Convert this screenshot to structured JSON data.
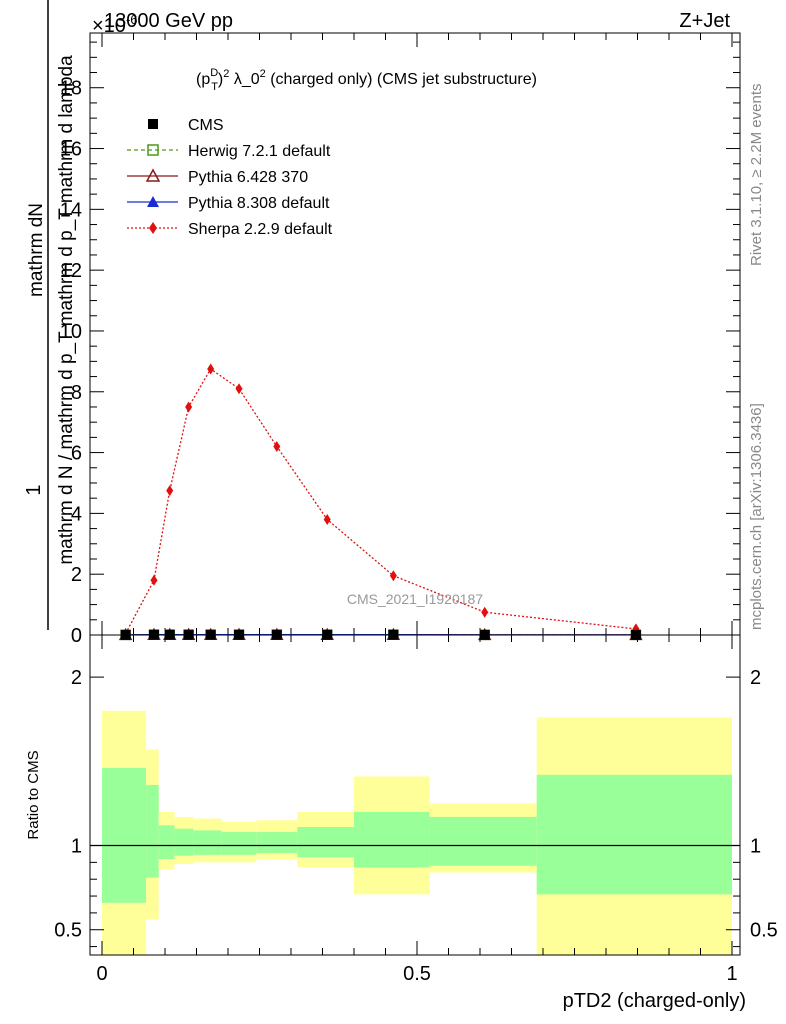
{
  "header": {
    "left_text": "13000 GeV pp",
    "right_text": "Z+Jet",
    "exponent_label": "×10",
    "exponent_power": "-6"
  },
  "side_labels": {
    "rivet": "Rivet 3.1.10, ≥ 2.2M events",
    "mcplots": "mcplots.cern.ch [arXiv:1306.3436]"
  },
  "watermark": "CMS_2021_I1920187",
  "chart_data": [
    {
      "type": "line",
      "title": "(pTD)2 λ_02 (charged only) (CMS jet substructure)",
      "title_parts": {
        "p": "(p",
        "sub": "T",
        "sup": "D",
        "close": ")",
        "sq": "2",
        "mid": " λ_0",
        "sq2": "2",
        "tail": " (charged only) (CMS jet substructure)"
      },
      "ylabel_top": "1",
      "ylabel_num": "mathrm dN",
      "ylabel_den": "mathrm d N / mathrm d p_T mathrm d p_T mathrm d lambda",
      "xlim": [
        0,
        1
      ],
      "ylim": [
        0,
        19.8
      ],
      "yticks": [
        0,
        2,
        4,
        6,
        8,
        10,
        12,
        14,
        16,
        18
      ],
      "x_centers": [
        0.0375,
        0.0825,
        0.1075,
        0.1375,
        0.1725,
        0.2175,
        0.2775,
        0.3575,
        0.4625,
        0.6075,
        0.8475
      ],
      "legend_placement": "top-left",
      "series": [
        {
          "name": "CMS",
          "marker": "square-filled",
          "color": "#000000",
          "values": [
            0.005,
            0.01,
            0.01,
            0.01,
            0.01,
            0.01,
            0.01,
            0.01,
            0.01,
            0.005,
            0.005
          ]
        },
        {
          "name": "Herwig 7.2.1 default",
          "marker": "square-open",
          "line": "dashed",
          "color": "#4a9a1a",
          "values": [
            0.005,
            0.01,
            0.01,
            0.01,
            0.01,
            0.01,
            0.01,
            0.01,
            0.01,
            0.005,
            0.005
          ]
        },
        {
          "name": "Pythia 6.428 370",
          "marker": "triangle-open",
          "line": "solid",
          "color": "#8b1a1a",
          "values": [
            0.005,
            0.01,
            0.01,
            0.01,
            0.01,
            0.01,
            0.01,
            0.01,
            0.01,
            0.005,
            0.005
          ]
        },
        {
          "name": "Pythia 8.308 default",
          "marker": "triangle-filled",
          "line": "solid",
          "color": "#1a2bd4",
          "values": [
            0.005,
            0.01,
            0.01,
            0.01,
            0.01,
            0.01,
            0.01,
            0.01,
            0.01,
            0.005,
            0.005
          ]
        },
        {
          "name": "Sherpa 2.2.9 default",
          "marker": "diamond-filled",
          "line": "dotted",
          "color": "#e01010",
          "values": [
            0.05,
            1.8,
            4.75,
            7.5,
            8.75,
            8.1,
            6.2,
            3.8,
            1.95,
            0.75,
            0.2
          ]
        }
      ]
    },
    {
      "type": "area",
      "ylabel": "Ratio to CMS",
      "xlabel": "pTD2 (charged-only)",
      "xlim": [
        0,
        1
      ],
      "ylim": [
        0.35,
        2.25
      ],
      "yticks": [
        0.5,
        1,
        2
      ],
      "xticks": [
        0,
        0.5,
        1
      ],
      "bin_edges": [
        0,
        0.07,
        0.09,
        0.115,
        0.145,
        0.19,
        0.245,
        0.31,
        0.4,
        0.52,
        0.69,
        1.0
      ],
      "band_stat_low": [
        0.66,
        0.81,
        0.92,
        0.94,
        0.945,
        0.945,
        0.955,
        0.93,
        0.87,
        0.88,
        0.71
      ],
      "band_stat_high": [
        1.46,
        1.36,
        1.12,
        1.1,
        1.09,
        1.08,
        1.08,
        1.11,
        1.2,
        1.17,
        1.42
      ],
      "band_total_low": [
        0.35,
        0.56,
        0.86,
        0.89,
        0.9,
        0.9,
        0.92,
        0.87,
        0.71,
        0.84,
        0.35
      ],
      "band_total_high": [
        1.8,
        1.57,
        1.2,
        1.17,
        1.16,
        1.14,
        1.15,
        1.2,
        1.41,
        1.25,
        1.76
      ],
      "stat_color": "#99ff99",
      "total_color": "#ffff99",
      "reference_line": 1
    }
  ]
}
